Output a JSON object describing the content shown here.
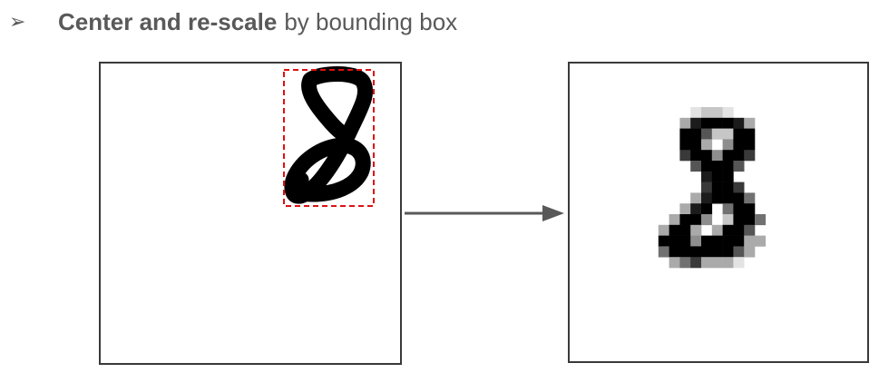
{
  "bullet": {
    "icon": "arrowhead-bullet",
    "glyph": "➢",
    "bold_text": "Center and re-scale",
    "rest_text": "by bounding box"
  },
  "colors": {
    "text": "#595959",
    "box_border": "#3a3a3a",
    "bbox_dash": "#e01010",
    "arrow": "#595959",
    "ink": "#000000"
  },
  "left_panel": {
    "content": "hand-drawn digit 8 with red dashed bounding box"
  },
  "right_panel": {
    "content": "pixelated centered digit 8"
  }
}
